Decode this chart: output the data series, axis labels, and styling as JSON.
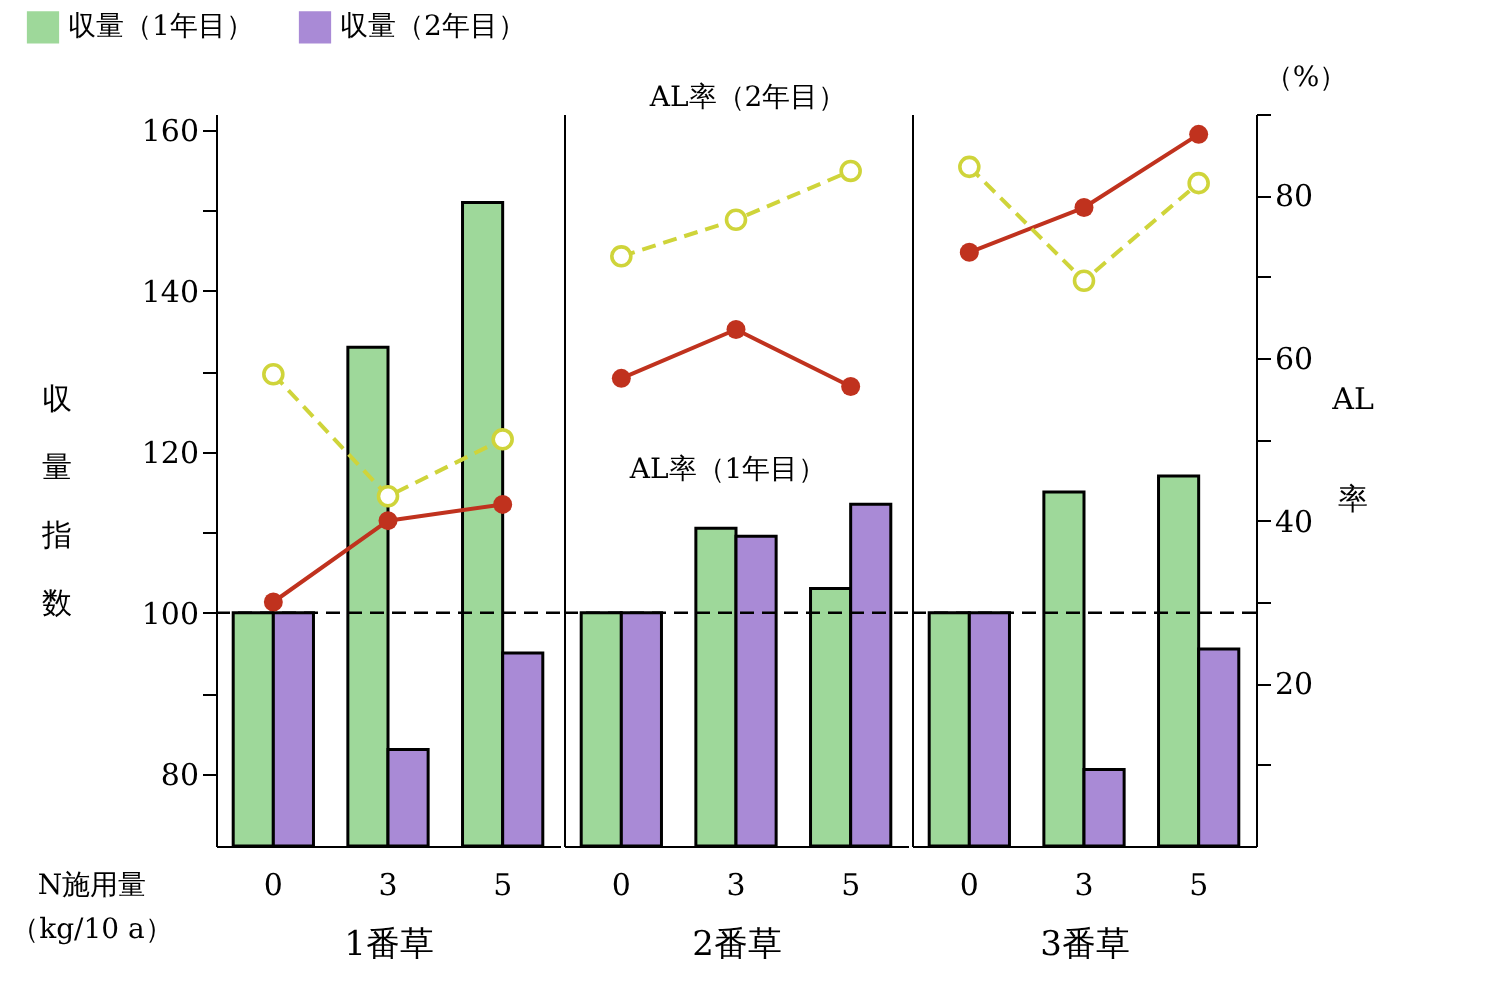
{
  "chart_data": [
    {
      "type": "bar",
      "categories": [
        "0",
        "3",
        "5"
      ],
      "xlabel": "1番草",
      "ylabel": "収量指数",
      "ylim": [
        71,
        162
      ],
      "yticks": [
        80,
        {
          "value": 90,
          "label": null
        },
        100,
        {
          "value": 110,
          "label": null
        },
        120,
        {
          "value": 130,
          "label": null
        },
        140,
        {
          "value": 150,
          "label": null
        },
        160
      ],
      "y2lim": [
        0,
        90
      ],
      "tick_labels": [
        "x",
        "y"
      ],
      "grid": false,
      "series": [
        {
          "name": "収量（1年目）",
          "type": "bar",
          "color": "#9ed89a",
          "values": [
            100,
            133,
            151
          ]
        },
        {
          "name": "収量（2年目）",
          "type": "bar",
          "color": "#a98ad6",
          "values": [
            100,
            83,
            95
          ]
        },
        {
          "type": "line",
          "axis": "y2",
          "color": "#c0321e",
          "marker": "circle",
          "line_style": "solid",
          "values": [
            30,
            40,
            42
          ]
        },
        {
          "type": "line",
          "axis": "y2",
          "color": "#cfd43a",
          "marker": "circle",
          "line_style": "dashed",
          "values": [
            58,
            43,
            50
          ]
        }
      ],
      "ref_lines": [
        {
          "axis": "y",
          "value": 100,
          "line_style": "dashed"
        }
      ],
      "annotations": [
        "N施用量",
        "（kg/10 a）"
      ]
    },
    {
      "type": "bar",
      "categories": [
        "0",
        "3",
        "5"
      ],
      "xlabel": "2番草",
      "ylim": [
        71,
        162
      ],
      "y2lim": [
        0,
        90
      ],
      "tick_labels": [
        "x"
      ],
      "grid": false,
      "series": [
        {
          "type": "bar",
          "color": "#9ed89a",
          "values": [
            100,
            110.5,
            103
          ]
        },
        {
          "type": "bar",
          "color": "#a98ad6",
          "values": [
            100,
            109.5,
            113.5
          ]
        },
        {
          "name": "AL率（1年目）",
          "type": "line",
          "axis": "y2",
          "color": "#c0321e",
          "marker": "circle",
          "line_style": "solid",
          "values": [
            57.5,
            63.5,
            56.5
          ]
        },
        {
          "name": "AL率（2年目）",
          "type": "line",
          "axis": "y2",
          "color": "#cfd43a",
          "marker": "circle",
          "line_style": "dashed",
          "values": [
            72.5,
            77,
            83
          ]
        }
      ],
      "ref_lines": [
        {
          "axis": "y",
          "value": 100,
          "line_style": "dashed"
        }
      ]
    },
    {
      "type": "bar",
      "categories": [
        "0",
        "3",
        "5"
      ],
      "xlabel": "3番草",
      "y2label": "AL率",
      "ylim": [
        71,
        162
      ],
      "y2lim": [
        0,
        90
      ],
      "y2ticks": [
        {
          "value": 10,
          "label": null
        },
        20,
        {
          "value": 30,
          "label": null
        },
        40,
        {
          "value": 50,
          "label": null
        },
        60,
        {
          "value": 70,
          "label": null
        },
        80,
        {
          "value": 90,
          "label": null
        }
      ],
      "tick_labels": [
        "x",
        "y2"
      ],
      "grid": false,
      "series": [
        {
          "type": "bar",
          "color": "#9ed89a",
          "values": [
            100,
            115,
            117
          ]
        },
        {
          "type": "bar",
          "color": "#a98ad6",
          "values": [
            100,
            80.5,
            95.5
          ]
        },
        {
          "type": "line",
          "axis": "y2",
          "color": "#c0321e",
          "marker": "circle",
          "line_style": "solid",
          "values": [
            73,
            78.5,
            87.5
          ]
        },
        {
          "type": "line",
          "axis": "y2",
          "color": "#cfd43a",
          "marker": "circle",
          "line_style": "dashed",
          "values": [
            83.5,
            69.5,
            81.5
          ]
        }
      ],
      "ref_lines": [
        {
          "axis": "y",
          "value": 100,
          "line_style": "dashed"
        }
      ],
      "annotations": [
        "（%）"
      ]
    }
  ]
}
